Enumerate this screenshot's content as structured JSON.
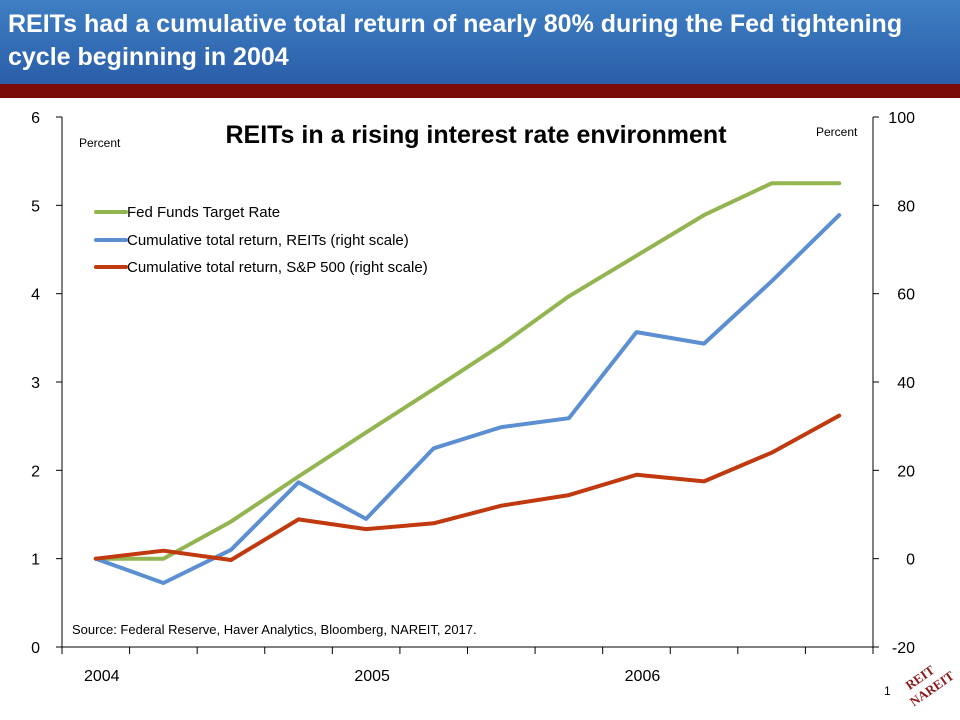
{
  "slide": {
    "headline": "REITs had a cumulative total return of nearly 80% during the Fed tightening cycle beginning in 2004",
    "page_number": "1",
    "logo_text": "REIT NAREIT"
  },
  "colors": {
    "banner": "#2f6bb5",
    "stripe": "#7b0a0a",
    "fed": "#92b550",
    "reits": "#5b8fd2",
    "sp500": "#c0390f"
  },
  "chart_data": {
    "type": "line",
    "title": "REITs in a rising interest rate environment",
    "ylabel_left": "Percent",
    "ylabel_right": "Percent",
    "source": "Source: Federal Reserve, Haver Analytics, Bloomberg, NAREIT, 2017.",
    "x_tick_labels": [
      "2004",
      "2005",
      "2006"
    ],
    "x": [
      0,
      1,
      2,
      3,
      4,
      5,
      6,
      7,
      8,
      9,
      10,
      11
    ],
    "xlim": [
      -0.5,
      11.5
    ],
    "x_label_positions": [
      0,
      4,
      8
    ],
    "ylim_left": [
      0,
      6
    ],
    "yticks_left": [
      0,
      1,
      2,
      3,
      4,
      5,
      6
    ],
    "ylim_right": [
      -20,
      100
    ],
    "yticks_right": [
      -20,
      0,
      20,
      40,
      60,
      80,
      100
    ],
    "legend_position": "top-left",
    "series": [
      {
        "name": "Fed Funds Target Rate",
        "axis": "left",
        "color": "#92b550",
        "values": [
          1.0,
          1.0,
          1.42,
          1.93,
          2.43,
          2.92,
          3.42,
          3.97,
          4.43,
          4.89,
          5.25,
          5.25
        ]
      },
      {
        "name": "Cumulative total return, REITs (right scale)",
        "axis": "right",
        "color": "#5b8fd2",
        "values": [
          0.0,
          -5.5,
          2.0,
          17.3,
          9.0,
          25.0,
          29.8,
          31.8,
          51.3,
          48.7,
          62.8,
          77.8
        ]
      },
      {
        "name": "Cumulative total return, S&P 500 (right scale)",
        "axis": "right",
        "color": "#c0390f",
        "values": [
          0.0,
          1.8,
          -0.3,
          8.9,
          6.7,
          8.0,
          12.0,
          14.4,
          19.0,
          17.5,
          24.0,
          32.4
        ]
      }
    ]
  }
}
